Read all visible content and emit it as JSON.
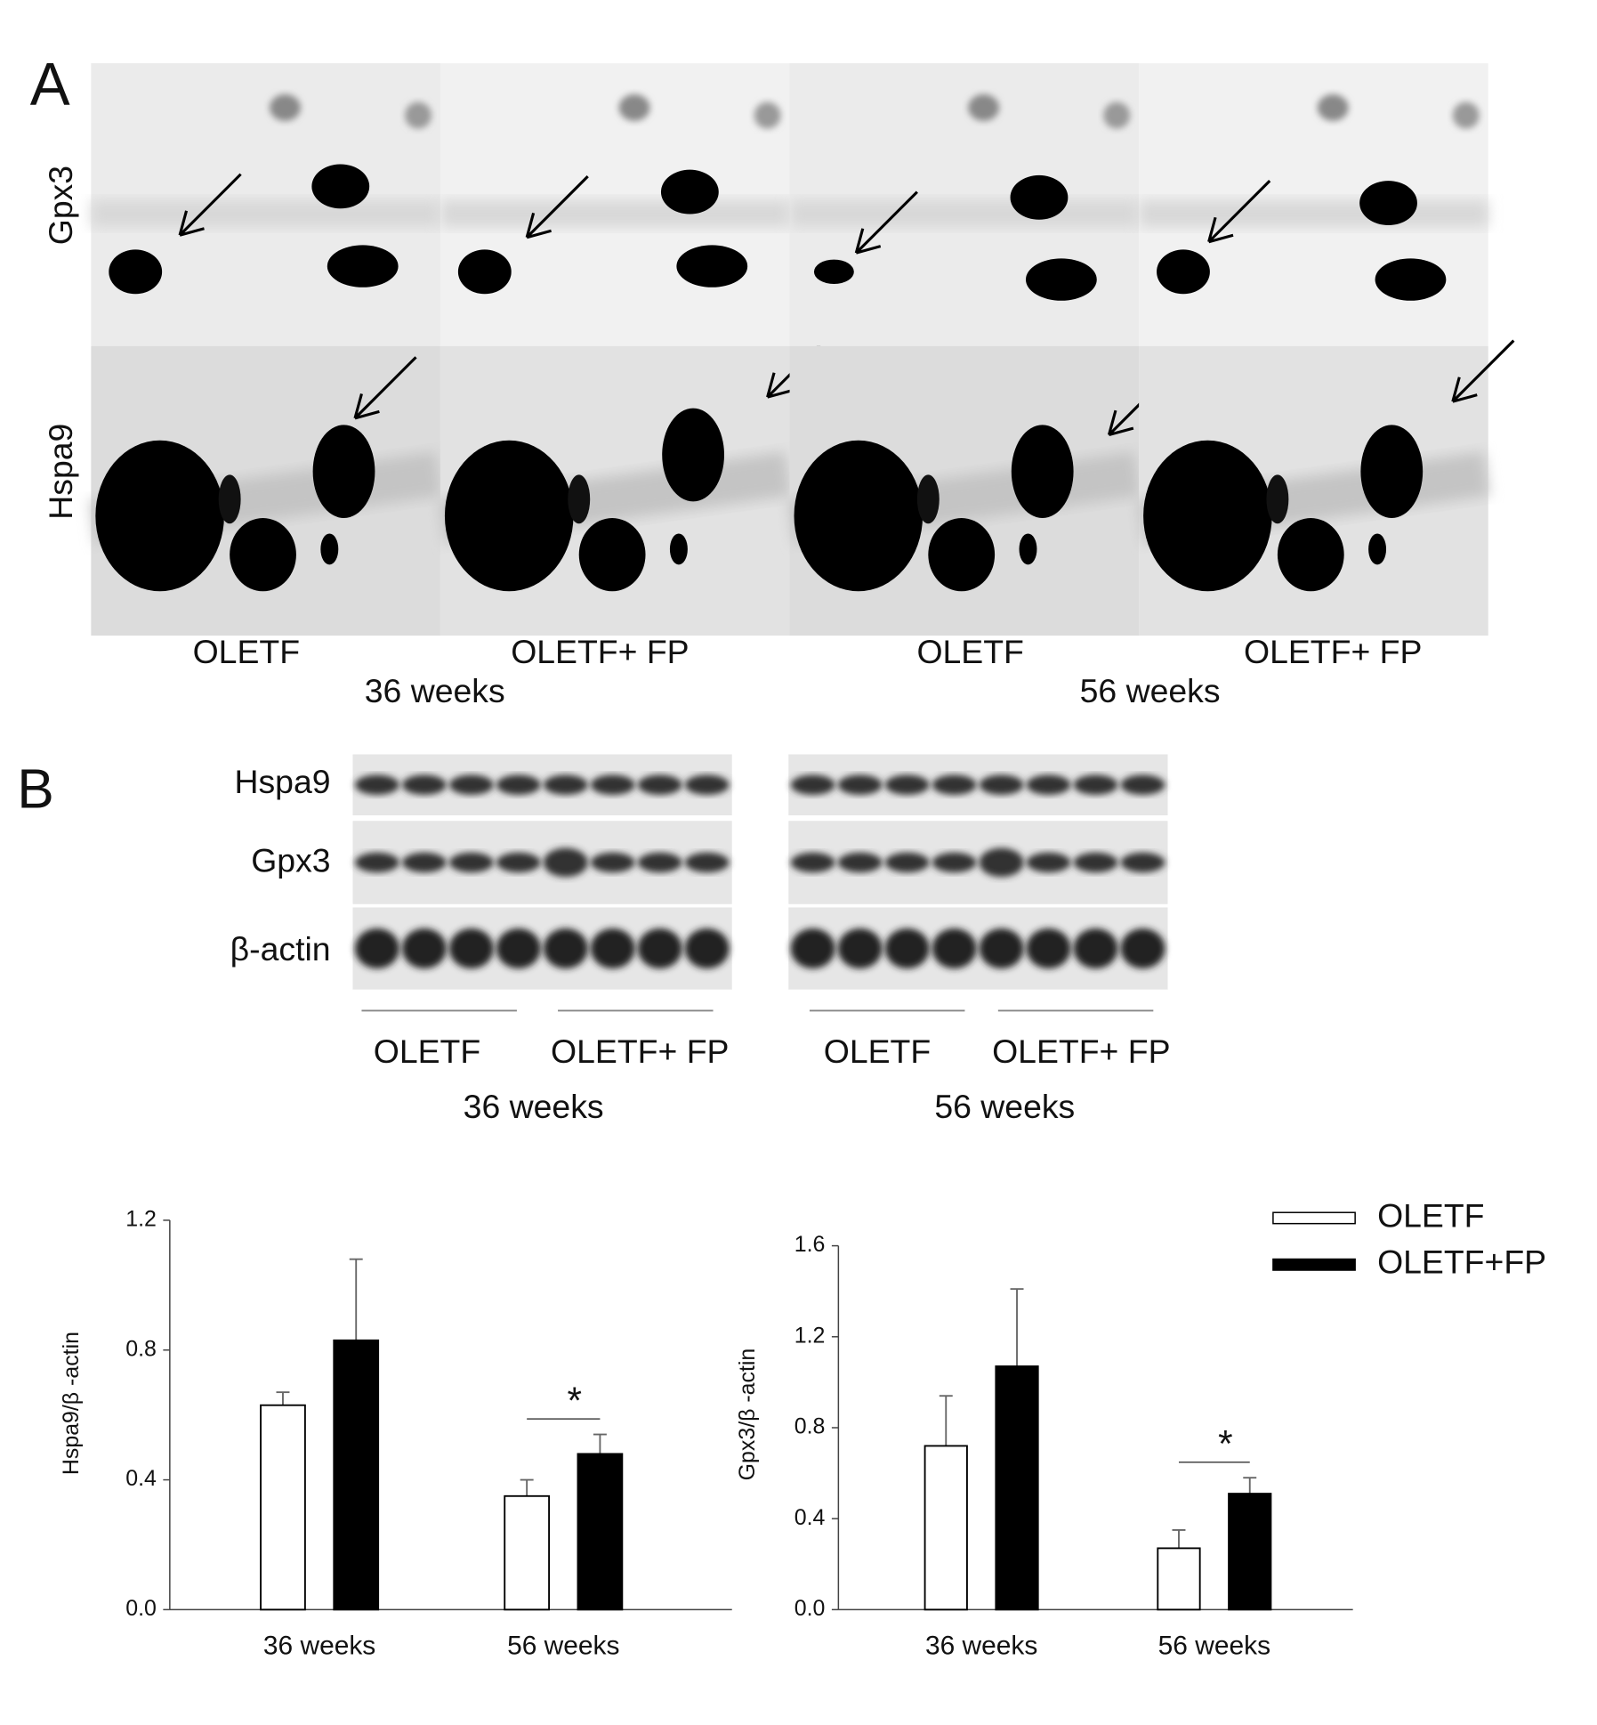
{
  "panel_a": {
    "label": "A",
    "rows": [
      "Gpx3",
      "Hspa9"
    ],
    "columns": [
      "OLETF",
      "OLETF+ FP",
      "OLETF",
      "OLETF+ FP"
    ],
    "groups": [
      "36 weeks",
      "56 weeks"
    ]
  },
  "panel_b": {
    "label": "B",
    "bands": [
      "Hspa9",
      "Gpx3",
      "β-actin"
    ],
    "blots": [
      {
        "columns": [
          "OLETF",
          "OLETF+ FP"
        ],
        "group": "36 weeks"
      },
      {
        "columns": [
          "OLETF",
          "OLETF+ FP"
        ],
        "group": "56 weeks"
      }
    ]
  },
  "chart_data": [
    {
      "type": "bar",
      "y_label": "Hspa9/β -actin",
      "categories": [
        "36 weeks",
        "56 weeks"
      ],
      "series": [
        {
          "color": "#ffffff",
          "values": [
            0.63,
            0.35
          ],
          "errors": [
            0.04,
            0.05
          ]
        },
        {
          "color": "#000000",
          "values": [
            0.83,
            0.48
          ],
          "errors": [
            0.25,
            0.06
          ]
        }
      ],
      "ylim": [
        0,
        1.2
      ],
      "yticks": [
        {
          "value": 0,
          "label": "0.0"
        },
        0.4,
        0.8,
        1.2
      ],
      "annotation": "*"
    },
    {
      "type": "bar",
      "y_label": "Gpx3/β -actin",
      "categories": [
        "36 weeks",
        "56 weeks"
      ],
      "series": [
        {
          "name": "OLETF",
          "color": "#ffffff",
          "values": [
            0.72,
            0.27
          ],
          "errors": [
            0.22,
            0.08
          ]
        },
        {
          "name": "OLETF+FP",
          "color": "#000000",
          "values": [
            1.07,
            0.51
          ],
          "errors": [
            0.34,
            0.07
          ]
        }
      ],
      "ylim": [
        0,
        1.6
      ],
      "yticks": [
        {
          "value": 0,
          "label": "0.0"
        },
        0.4,
        0.8,
        1.2,
        1.6
      ],
      "annotation": "*",
      "legend": "upper right"
    }
  ]
}
